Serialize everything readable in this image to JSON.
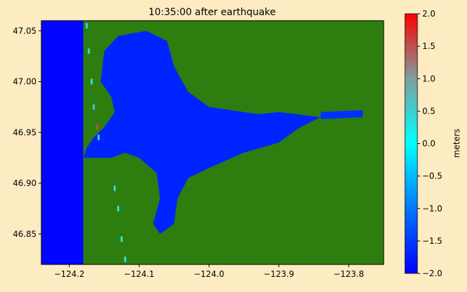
{
  "chart_data": {
    "type": "heatmap",
    "title": "10:35:00 after earthquake",
    "xlabel": "",
    "ylabel": "",
    "xlim": [
      -124.24,
      -123.75
    ],
    "ylim": [
      46.82,
      47.06
    ],
    "x_ticks": [
      {
        "value": -124.2,
        "label": "−124.2"
      },
      {
        "value": -124.1,
        "label": "−124.1"
      },
      {
        "value": -124.0,
        "label": "−124.0"
      },
      {
        "value": -123.9,
        "label": "−123.9"
      },
      {
        "value": -123.8,
        "label": "−123.8"
      }
    ],
    "y_ticks": [
      {
        "value": 46.85,
        "label": "46.85"
      },
      {
        "value": 46.9,
        "label": "46.90"
      },
      {
        "value": 46.95,
        "label": "46.95"
      },
      {
        "value": 47.0,
        "label": "47.00"
      },
      {
        "value": 47.05,
        "label": "47.05"
      }
    ],
    "grid": false,
    "land_color": "#2e7d0f",
    "colorbar": {
      "label": "meters",
      "range": [
        -2.0,
        2.0
      ],
      "ticks": [
        {
          "value": 2.0,
          "label": "2.0"
        },
        {
          "value": 1.5,
          "label": "1.5"
        },
        {
          "value": 1.0,
          "label": "1.0"
        },
        {
          "value": 0.5,
          "label": "0.5"
        },
        {
          "value": 0.0,
          "label": "0.0"
        },
        {
          "value": -0.5,
          "label": "−0.5"
        },
        {
          "value": -1.0,
          "label": "−1.0"
        },
        {
          "value": -1.5,
          "label": "−1.5"
        },
        {
          "value": -2.0,
          "label": "−2.0"
        }
      ],
      "colors": [
        "#0000ff",
        "#0077ff",
        "#00ffff",
        "#7f9f9f",
        "#ff0000"
      ]
    },
    "water_regions": [
      {
        "name": "ocean",
        "level": -1.95,
        "polygon": [
          [
            -124.24,
            46.82
          ],
          [
            -124.18,
            46.82
          ],
          [
            -124.18,
            47.06
          ],
          [
            -124.24,
            47.06
          ]
        ]
      },
      {
        "name": "grays-harbor-bay",
        "level": -1.7,
        "polygon": [
          [
            -124.18,
            46.925
          ],
          [
            -124.14,
            46.925
          ],
          [
            -124.12,
            46.93
          ],
          [
            -124.1,
            46.925
          ],
          [
            -124.075,
            46.91
          ],
          [
            -124.07,
            46.885
          ],
          [
            -124.08,
            46.86
          ],
          [
            -124.07,
            46.85
          ],
          [
            -124.05,
            46.86
          ],
          [
            -124.045,
            46.885
          ],
          [
            -124.03,
            46.905
          ],
          [
            -124.0,
            46.915
          ],
          [
            -123.95,
            46.93
          ],
          [
            -123.9,
            46.94
          ],
          [
            -123.87,
            46.955
          ],
          [
            -123.84,
            46.965
          ],
          [
            -123.9,
            46.97
          ],
          [
            -123.93,
            46.968
          ],
          [
            -123.97,
            46.972
          ],
          [
            -124.0,
            46.975
          ],
          [
            -124.03,
            46.99
          ],
          [
            -124.05,
            47.015
          ],
          [
            -124.06,
            47.04
          ],
          [
            -124.09,
            47.05
          ],
          [
            -124.13,
            47.045
          ],
          [
            -124.15,
            47.03
          ],
          [
            -124.155,
            47.0
          ],
          [
            -124.14,
            46.985
          ],
          [
            -124.135,
            46.97
          ],
          [
            -124.15,
            46.955
          ],
          [
            -124.165,
            46.945
          ],
          [
            -124.175,
            46.935
          ],
          [
            -124.18,
            46.925
          ]
        ]
      },
      {
        "name": "chehalis-river",
        "level": -1.6,
        "polygon": [
          [
            -123.84,
            46.963
          ],
          [
            -123.78,
            46.965
          ],
          [
            -123.78,
            46.972
          ],
          [
            -123.84,
            46.97
          ]
        ]
      }
    ],
    "shoreline_marks": [
      {
        "x": -124.175,
        "y": 47.055,
        "level": 0.3
      },
      {
        "x": -124.172,
        "y": 47.03,
        "level": 0.4
      },
      {
        "x": -124.168,
        "y": 47.0,
        "level": 0.2
      },
      {
        "x": -124.165,
        "y": 46.975,
        "level": 0.6
      },
      {
        "x": -124.16,
        "y": 46.955,
        "level": 1.5
      },
      {
        "x": -124.158,
        "y": 46.945,
        "level": 0.5
      },
      {
        "x": -124.135,
        "y": 46.895,
        "level": 0.4
      },
      {
        "x": -124.13,
        "y": 46.875,
        "level": 0.3
      },
      {
        "x": -124.125,
        "y": 46.845,
        "level": 0.2
      },
      {
        "x": -124.12,
        "y": 46.825,
        "level": 0.3
      }
    ]
  }
}
